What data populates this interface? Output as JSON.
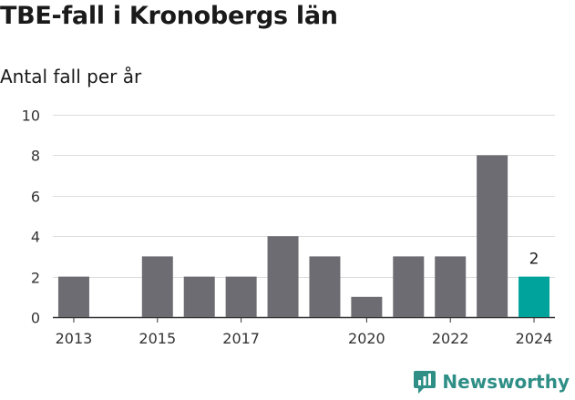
{
  "title": "TBE-fall i Kronobergs län",
  "subtitle": "Antal fall per år",
  "brand": "Newsworthy",
  "colors": {
    "bar": "#6d6c72",
    "highlight": "#00a39b",
    "grid": "#dcdcdc",
    "brand": "#2f8f87"
  },
  "chart_data": {
    "type": "bar",
    "title": "TBE-fall i Kronobergs län",
    "subtitle": "Antal fall per år",
    "xlabel": "",
    "ylabel": "",
    "categories": [
      2013,
      2014,
      2015,
      2016,
      2017,
      2018,
      2019,
      2020,
      2021,
      2022,
      2023,
      2024
    ],
    "values": [
      2,
      0,
      3,
      2,
      2,
      4,
      3,
      1,
      3,
      3,
      8,
      2
    ],
    "x_tick_labels": [
      "2013",
      "2015",
      "2017",
      "2020",
      "2022",
      "2024"
    ],
    "y_ticks": [
      0,
      2,
      4,
      6,
      8,
      10
    ],
    "ylim": [
      0,
      10
    ],
    "grid": true,
    "highlight": {
      "category": 2024,
      "label": "2"
    }
  }
}
